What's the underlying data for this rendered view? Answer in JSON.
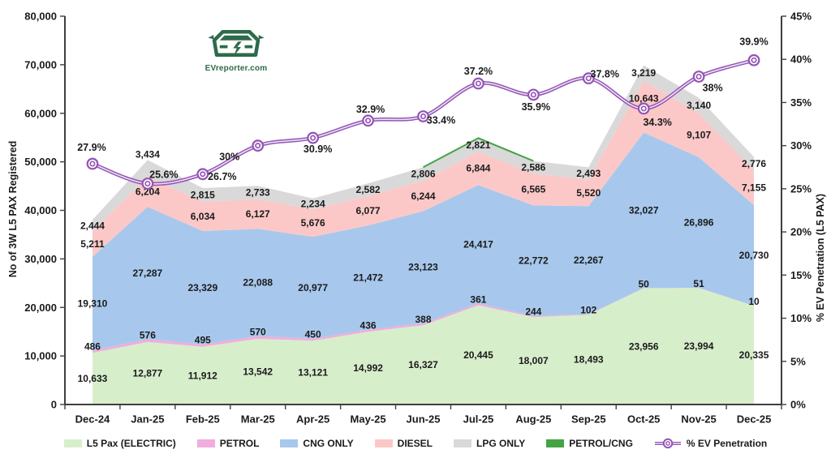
{
  "branding": {
    "logo_text": "EVreporter.com"
  },
  "chart_data": {
    "type": "area",
    "subtype": "stacked-area-with-line",
    "categories": [
      "Dec-24",
      "Jan-25",
      "Feb-25",
      "Mar-25",
      "Apr-25",
      "May-25",
      "Jun-25",
      "Jul-25",
      "Aug-25",
      "Sep-25",
      "Oct-25",
      "Nov-25",
      "Dec-25"
    ],
    "series": [
      {
        "name": "L5 Pax (ELECTRIC)",
        "color": "#d7eecb",
        "show_labels": true,
        "values": [
          10633,
          12877,
          11912,
          13542,
          13121,
          14992,
          16327,
          20445,
          18007,
          18493,
          23956,
          23994,
          20335
        ]
      },
      {
        "name": "PETROL",
        "color": "#efaedd",
        "show_labels": true,
        "values": [
          486,
          576,
          495,
          570,
          450,
          436,
          388,
          361,
          244,
          102,
          50,
          51,
          10
        ]
      },
      {
        "name": "CNG ONLY",
        "color": "#a7c8ec",
        "show_labels": true,
        "values": [
          19310,
          27287,
          23329,
          22088,
          20977,
          21472,
          23123,
          24417,
          22772,
          22267,
          32027,
          26896,
          20730
        ]
      },
      {
        "name": "DIESEL",
        "color": "#fbc8c7",
        "show_labels": true,
        "values": [
          5211,
          6204,
          6034,
          6127,
          5676,
          6077,
          6244,
          6844,
          6565,
          5520,
          10643,
          9107,
          7155
        ]
      },
      {
        "name": "LPG ONLY",
        "color": "#d9d9d9",
        "show_labels": true,
        "values": [
          2444,
          3434,
          2815,
          2733,
          2234,
          2582,
          2806,
          2821,
          2586,
          2493,
          3219,
          3140,
          2776
        ]
      },
      {
        "name": "PETROL/CNG",
        "color": "#44a345",
        "show_labels": false,
        "values": [
          0,
          0,
          0,
          0,
          0,
          0,
          0,
          0,
          0,
          0,
          0,
          0,
          0
        ]
      }
    ],
    "line_series": {
      "name": "% EV Penetration",
      "color": "#9455b5",
      "inner_color": "#ece2f5",
      "values": [
        27.9,
        25.6,
        26.7,
        30,
        30.9,
        32.9,
        33.4,
        37.2,
        35.9,
        37.8,
        34.3,
        38,
        39.9
      ],
      "label_suffix": "%"
    },
    "y_left": {
      "label": "No of 3W L5 PAX Registered",
      "min": 0,
      "max": 80000,
      "step": 10000
    },
    "y_right": {
      "label": "% EV Penetration (L5 PAX)",
      "min": 0,
      "max": 45,
      "step": 5,
      "suffix": "%"
    },
    "grid": false,
    "legend_position": "bottom"
  }
}
